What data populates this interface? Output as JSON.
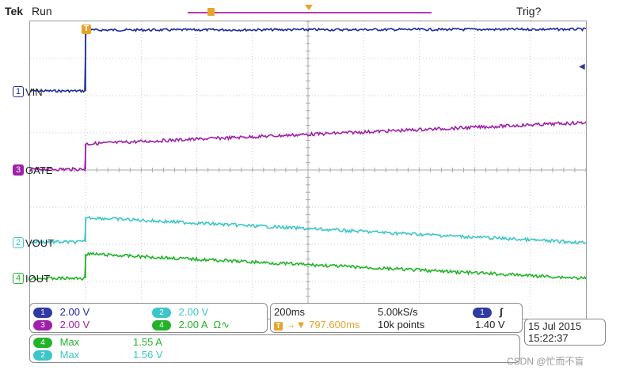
{
  "header": {
    "brand": "Tek",
    "status": "Run",
    "trigger_status": "Trig?"
  },
  "colors": {
    "ch1": "#1f2a9e",
    "ch2": "#3cc6c8",
    "ch3": "#a020a8",
    "ch4": "#22b32a",
    "trigger": "#e8a42a"
  },
  "channels": {
    "ch1": {
      "number": "1",
      "label": "VIN",
      "scale": "2.00 V"
    },
    "ch2": {
      "number": "2",
      "label": "VOUT",
      "scale": "2.00 V"
    },
    "ch3": {
      "number": "3",
      "label": "GATE",
      "scale": "2.00 V"
    },
    "ch4": {
      "number": "4",
      "label": "IOUT",
      "scale": "2.00 A",
      "suffix": "Ω∿"
    }
  },
  "trigger_marker": {
    "symbol": "T"
  },
  "level_marker": {
    "symbol": "◀"
  },
  "timebase": {
    "scale": "200ms",
    "sample_rate": "5.00kS/s",
    "trigger_prefix": "T",
    "delay_arrow": "→▼",
    "delay": "797.600ms",
    "record_length": "10k points",
    "trigger_channel": "1",
    "trigger_slope": "ʃ",
    "trigger_level": "1.40 V"
  },
  "datetime": {
    "date": "15 Jul  2015",
    "time": "15:22:37"
  },
  "measurements": [
    {
      "channel": "4",
      "type": "Max",
      "value": "1.55 A"
    },
    {
      "channel": "2",
      "type": "Max",
      "value": "1.56 V"
    }
  ],
  "watermark": "CSDN @忙而不盲"
}
